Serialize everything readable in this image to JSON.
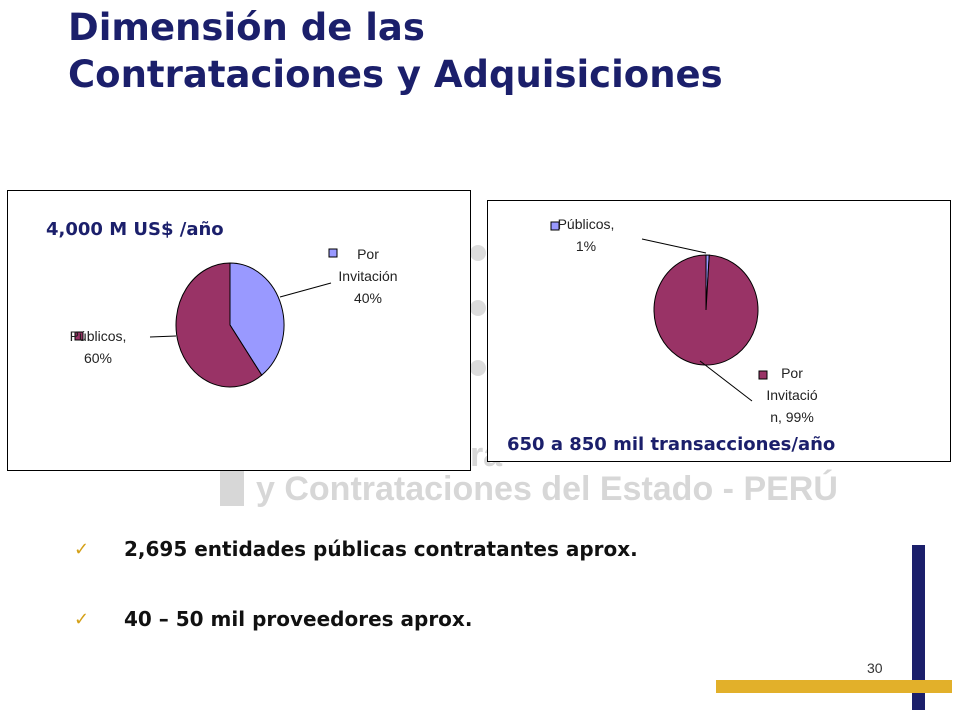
{
  "title": {
    "line1": "Dimensión de las",
    "line2": "Contrataciones y Adquisiciones"
  },
  "watermark": {
    "line1": "rá",
    "line2": "y Contrataciones del Estado - PERÚ"
  },
  "colors": {
    "title": "#1b1f6b",
    "publicos": "#993366",
    "invitacion": "#9999ff",
    "accent_gold": "#e2b02a"
  },
  "chart_data": [
    {
      "type": "pie",
      "annotation": "4,000 M US$ /año",
      "slices": [
        {
          "name": "Por Invitación",
          "value": 40,
          "label_lines": [
            "Por",
            "Invitación",
            "40%"
          ],
          "color": "#9999ff"
        },
        {
          "name": "Públicos",
          "value": 60,
          "label_lines": [
            "Públicos,",
            "60%"
          ],
          "color": "#993366"
        }
      ]
    },
    {
      "type": "pie",
      "annotation": "650 a 850 mil transacciones/año",
      "slices": [
        {
          "name": "Públicos",
          "value": 1,
          "label_lines": [
            "Públicos,",
            "1%"
          ],
          "color": "#9999ff"
        },
        {
          "name": "Por Invitación",
          "value": 99,
          "label_lines": [
            "Por",
            "Invitació",
            "n, 99%"
          ],
          "color": "#993366"
        }
      ]
    }
  ],
  "bullets": [
    {
      "check": "✓",
      "text": "2,695 entidades públicas contratantes aprox."
    },
    {
      "check": "✓",
      "text": "40 – 50 mil proveedores aprox."
    }
  ],
  "page_number": "30"
}
